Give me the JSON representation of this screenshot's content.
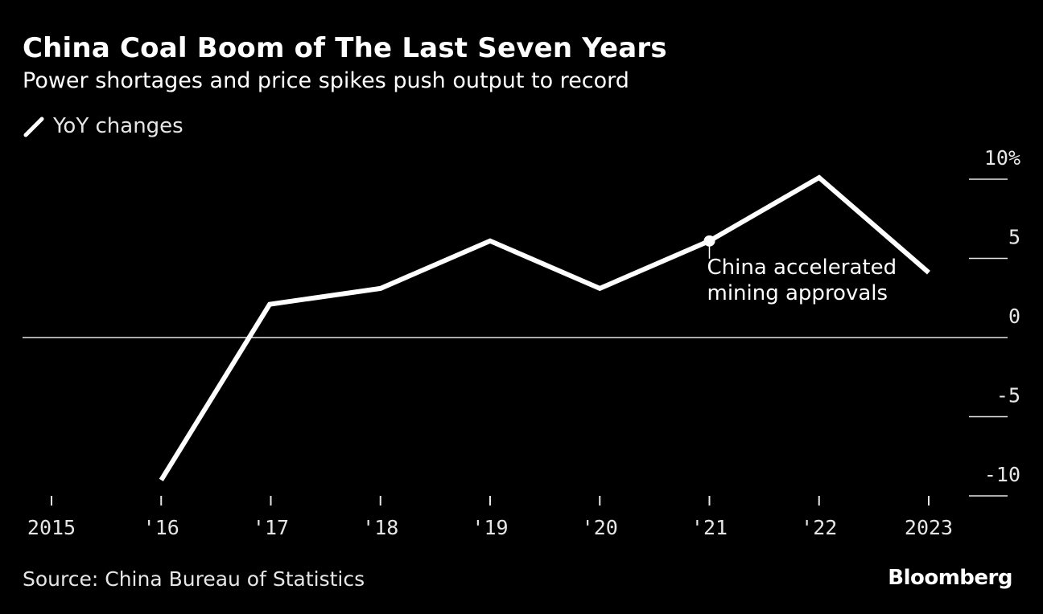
{
  "colors": {
    "background": "#000000",
    "line": "#ffffff",
    "axis_text": "#e6e6e6"
  },
  "header": {
    "title": "China Coal Boom of The Last Seven Years",
    "subtitle": "Power shortages and price spikes push output to record"
  },
  "legend": {
    "label": "YoY changes"
  },
  "chart_data": {
    "type": "line",
    "title": "China Coal Boom of The Last Seven Years",
    "subtitle": "Power shortages and price spikes push output to record",
    "xlabel": "",
    "ylabel": "",
    "xlim": [
      2015,
      2023
    ],
    "ylim": [
      -10,
      10
    ],
    "x_ticks": [
      2015,
      2016,
      2017,
      2018,
      2019,
      2020,
      2021,
      2022,
      2023
    ],
    "x_tick_labels": [
      "2015",
      "'16",
      "'17",
      "'18",
      "'19",
      "'20",
      "'21",
      "'22",
      "2023"
    ],
    "y_ticks": [
      10,
      5,
      0,
      -5,
      -10
    ],
    "y_tick_labels": [
      "10%",
      "5",
      "0",
      "-5",
      "-10"
    ],
    "zero_line": true,
    "y_axis_side": "right",
    "series": [
      {
        "name": "YoY changes",
        "x": [
          2016.0,
          2016.99,
          2018.0,
          2019.0,
          2020.0,
          2021.0,
          2022.0,
          2023.0
        ],
        "values": [
          -9.0,
          2.1,
          3.1,
          6.1,
          3.1,
          6.1,
          10.1,
          4.1
        ]
      }
    ],
    "annotations": [
      {
        "x": 2021.0,
        "y": 6.1,
        "lines": [
          "China accelerated",
          "mining approvals"
        ]
      }
    ],
    "source": "Source: China Bureau of Statistics"
  },
  "footer": {
    "source": "Source: China Bureau of Statistics",
    "brand": "Bloomberg"
  }
}
